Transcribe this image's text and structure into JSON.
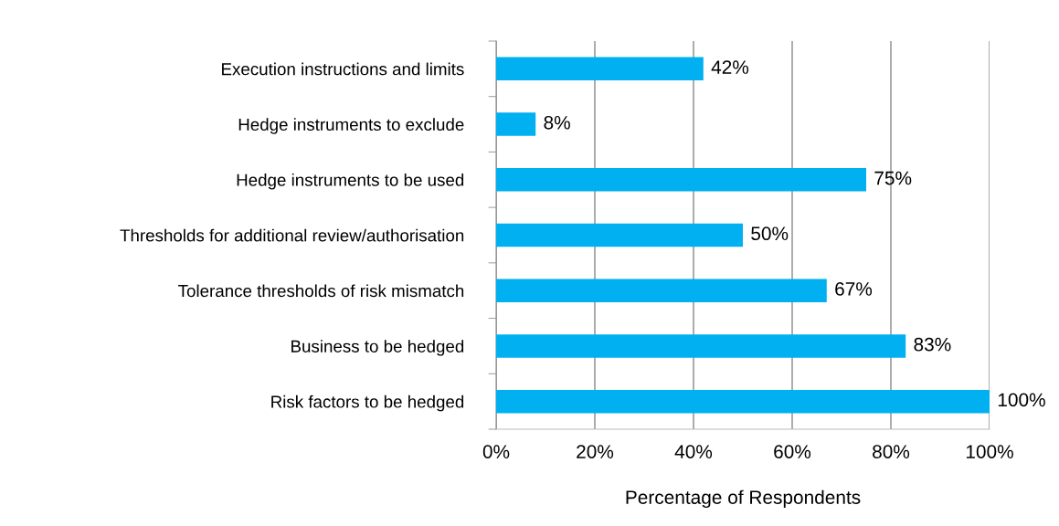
{
  "chart_data": {
    "type": "bar",
    "orientation": "horizontal",
    "categories": [
      "Execution instructions and limits",
      "Hedge instruments to exclude",
      "Hedge instruments to be used",
      "Thresholds for additional review/authorisation",
      "Tolerance thresholds of risk mismatch",
      "Business to be hedged",
      "Risk factors to be hedged"
    ],
    "values": [
      42,
      8,
      75,
      50,
      67,
      83,
      100
    ],
    "value_labels": [
      "42%",
      "8%",
      "75%",
      "50%",
      "67%",
      "83%",
      "100%"
    ],
    "color": "#00b0f0",
    "xlabel": "Percentage of Respondents",
    "xlim": [
      0,
      100
    ],
    "xticks": [
      {
        "value": 0,
        "label": "0%"
      },
      {
        "value": 20,
        "label": "20%"
      },
      {
        "value": 40,
        "label": "40%"
      },
      {
        "value": 60,
        "label": "60%"
      },
      {
        "value": 80,
        "label": "80%"
      },
      {
        "value": 100,
        "label": "100%"
      }
    ],
    "grid": "x"
  }
}
